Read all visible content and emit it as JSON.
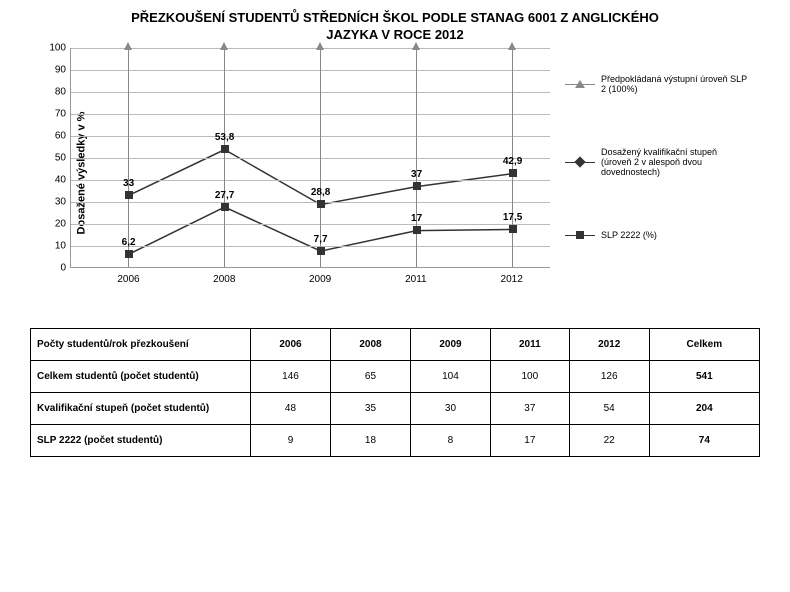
{
  "chart": {
    "title_line1": "PŘEZKOUŠENÍ STUDENTŮ STŘEDNÍCH ŠKOL PODLE STANAG 6001 Z ANGLICKÉHO",
    "title_line2": "JAZYKA V ROCE 2012",
    "ylabel": "Dosažené výsledky v %",
    "ylim": [
      0,
      100
    ],
    "ytick_step": 10,
    "categories": [
      "2006",
      "2008",
      "2009",
      "2011",
      "2012"
    ],
    "x_positions_pct": [
      12,
      32,
      52,
      72,
      92
    ],
    "series": [
      {
        "name": "Předpokládaná výstupní úroveň SLP 2 (100%)",
        "marker": "triangle",
        "color": "#888888",
        "line_color": "#888888",
        "values": [
          100,
          100,
          100,
          100,
          100
        ],
        "show_labels": false,
        "as_vertical_arrows": true
      },
      {
        "name": "Dosažený kvalifikační stupeň (úroveň 2 v alespoň dvou dovednostech)",
        "marker": "diamond",
        "color": "#333333",
        "line_color": "#333333",
        "values": [
          33,
          53.8,
          28.8,
          37,
          42.9
        ],
        "labels": [
          "33",
          "53,8",
          "28,8",
          "37",
          "42,9"
        ],
        "show_labels": true
      },
      {
        "name": "SLP 2222 (%)",
        "marker": "square",
        "color": "#333333",
        "line_color": "#333333",
        "values": [
          6.2,
          27.7,
          7.7,
          17,
          17.5
        ],
        "labels": [
          "6,2",
          "27,7",
          "7,7",
          "17",
          "17,5"
        ],
        "show_labels": true
      }
    ],
    "grid_color": "#bbbbbb",
    "background": "#ffffff",
    "label_fontsize": 10
  },
  "table": {
    "header_first": "Počty studentů/rok přezkoušení",
    "columns": [
      "2006",
      "2008",
      "2009",
      "2011",
      "2012"
    ],
    "total_col": "Celkem",
    "rows": [
      {
        "label": "Celkem studentů (počet studentů)",
        "cells": [
          "146",
          "65",
          "104",
          "100",
          "126"
        ],
        "total": "541"
      },
      {
        "label": "Kvalifikační stupeň (počet studentů)",
        "cells": [
          "48",
          "35",
          "30",
          "37",
          "54"
        ],
        "total": "204"
      },
      {
        "label": "SLP 2222 (počet studentů)",
        "cells": [
          "9",
          "18",
          "8",
          "17",
          "22"
        ],
        "total": "74"
      }
    ]
  }
}
